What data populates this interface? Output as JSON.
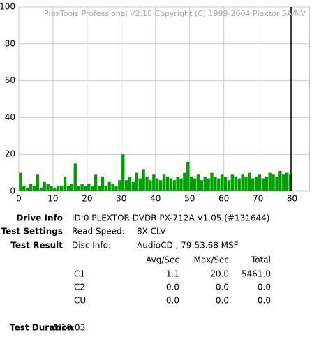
{
  "chart_data": {
    "type": "bar",
    "title": "PlexTools Professional V2.18 Copyright (C) 1999-2004 Plextor SA/NV",
    "x": [
      0.5,
      1.5,
      2.5,
      3.5,
      4.5,
      5.5,
      6.5,
      7.5,
      8.5,
      9.5,
      10.5,
      11.5,
      12.5,
      13.5,
      14.5,
      15.5,
      16.5,
      17.5,
      18.5,
      19.5,
      20.5,
      21.5,
      22.5,
      23.5,
      24.5,
      25.5,
      26.5,
      27.5,
      28.5,
      29.5,
      30.5,
      31.5,
      32.5,
      33.5,
      34.5,
      35.5,
      36.5,
      37.5,
      38.5,
      39.5,
      40.5,
      41.5,
      42.5,
      43.5,
      44.5,
      45.5,
      46.5,
      47.5,
      48.5,
      49.5,
      50.5,
      51.5,
      52.5,
      53.5,
      54.5,
      55.5,
      56.5,
      57.5,
      58.5,
      59.5,
      60.5,
      61.5,
      62.5,
      63.5,
      64.5,
      65.5,
      66.5,
      67.5,
      68.5,
      69.5,
      70.5,
      71.5,
      72.5,
      73.5,
      74.5,
      75.5,
      76.5,
      77.5,
      78.5,
      79.5
    ],
    "series": [
      {
        "name": "C1",
        "color": "#00a000",
        "values": [
          10,
          3,
          2,
          4,
          3,
          9,
          2,
          5,
          4,
          3,
          2,
          3,
          3,
          8,
          3,
          4,
          15,
          3,
          4,
          3,
          4,
          3,
          9,
          3,
          8,
          3,
          5,
          4,
          3,
          6,
          20,
          6,
          8,
          5,
          10,
          7,
          12,
          8,
          6,
          9,
          7,
          6,
          9,
          8,
          7,
          6,
          8,
          7,
          10,
          16,
          8,
          7,
          9,
          6,
          8,
          7,
          10,
          8,
          7,
          9,
          8,
          6,
          9,
          8,
          7,
          9,
          8,
          10,
          7,
          8,
          9,
          7,
          8,
          10,
          9,
          8,
          11,
          9,
          10,
          9
        ]
      }
    ],
    "xlim": [
      0,
      85
    ],
    "ylim": [
      0,
      100
    ],
    "xticks": [
      0,
      10,
      20,
      30,
      40,
      50,
      60,
      70,
      80
    ],
    "yticks": [
      0,
      20,
      40,
      60,
      80,
      100
    ],
    "grid": true
  },
  "info": {
    "drive_label": "Drive Info",
    "drive_value": "ID:0 PLEXTOR DVDR PX-712A V1.05 (#131644)",
    "settings_label": "Test Settings",
    "speed_label": "Read Speed:",
    "speed_value": "8X CLV",
    "result_label": "Test Result",
    "disc_label": "Disc Info:",
    "disc_value": "AudioCD , 79:53.68 MSF",
    "table": {
      "header": [
        "Avg/Sec",
        "Max/Sec",
        "Total"
      ],
      "rows": [
        [
          "C1",
          "1.1",
          "20.0",
          "5461.0"
        ],
        [
          "C2",
          "0.0",
          "0.0",
          "0.0"
        ],
        [
          "CU",
          "0.0",
          "0.0",
          "0.0"
        ]
      ]
    },
    "duration_label": "Test Duration",
    "duration_value": "0:10:03"
  }
}
